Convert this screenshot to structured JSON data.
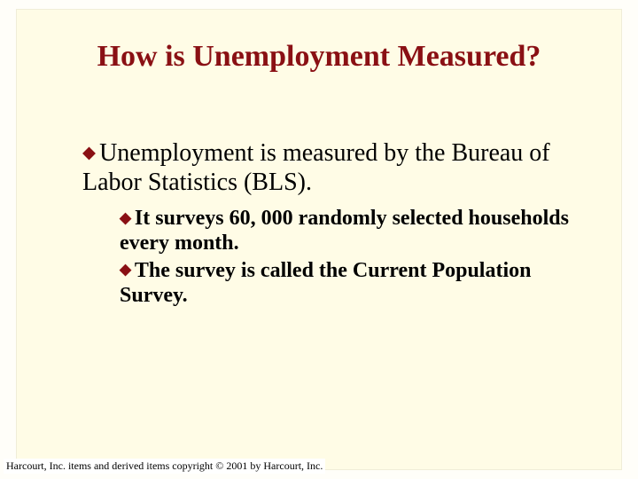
{
  "slide": {
    "title": "How is Unemployment Measured?",
    "bullet_color": "#8a1014",
    "title_color": "#8a1014",
    "background_color": "#fffce6",
    "outer_background": "#fffef9",
    "title_fontsize": 34,
    "body": {
      "lvl1_fontsize": 28,
      "lvl2_fontsize": 24,
      "lvl1": {
        "lead": "Unemployment",
        "rest": " is measured by the Bureau of Labor Statistics (BLS)."
      },
      "lvl2": [
        {
          "lead": "It",
          "rest": " surveys 60, 000 randomly selected households every month."
        },
        {
          "lead": "The",
          "rest": " survey is called the Current Population Survey."
        }
      ]
    },
    "footer": "Harcourt, Inc. items and derived items copyright © 2001 by Harcourt, Inc."
  }
}
